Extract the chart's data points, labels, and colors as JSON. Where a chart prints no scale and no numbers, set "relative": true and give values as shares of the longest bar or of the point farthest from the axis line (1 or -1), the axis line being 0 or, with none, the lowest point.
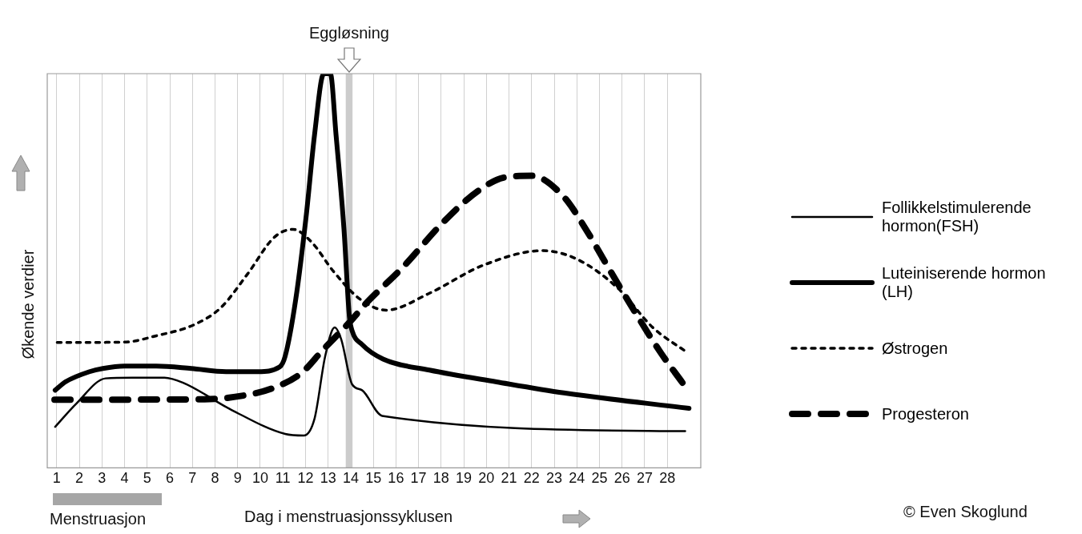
{
  "chart_data": {
    "type": "line",
    "relative": true,
    "xlabel": "Dag i menstruasjonssyklusen",
    "ylabel": "Økende verdier",
    "xlim": [
      0.58,
      29.48
    ],
    "xticks": [
      1,
      2,
      3,
      4,
      5,
      6,
      7,
      8,
      9,
      10,
      11,
      12,
      13,
      14,
      15,
      16,
      17,
      18,
      19,
      20,
      21,
      22,
      23,
      24,
      25,
      26,
      27,
      28
    ],
    "grid": "x",
    "legend": "right",
    "bands": [
      {
        "axis": "x",
        "from": 13.78,
        "to": 14.08,
        "label": "Eggløsning",
        "color": "#cccccc"
      }
    ],
    "annotations": [
      "Menstruasjon",
      "© Even Skoglund"
    ],
    "series": [
      {
        "name": "Follikkelstimulerende hormon(FSH)",
        "color": "#000000",
        "line_style": "solid",
        "x": [
          0.93,
          1.85,
          3.16,
          4.34,
          5.76,
          6.59,
          8.73,
          11.1,
          11.92,
          12.4,
          12.87,
          13.29,
          13.58,
          14.06,
          14.5,
          15.39,
          28.79
        ],
        "values": [
          0.104,
          0.162,
          0.227,
          0.229,
          0.229,
          0.216,
          0.147,
          0.086,
          0.082,
          0.125,
          0.283,
          0.356,
          0.326,
          0.212,
          0.197,
          0.132,
          0.093
        ]
      },
      {
        "name": "Luteiniserende hormon (LH)",
        "color": "#000000",
        "line_style": "solid",
        "x": [
          0.93,
          1.38,
          2.45,
          3.04,
          3.99,
          5.4,
          6.95,
          8.49,
          9.9,
          10.86,
          11.1,
          11.57,
          12.04,
          12.4,
          12.81,
          13.1,
          13.35,
          13.7,
          13.94,
          14.06,
          14.5,
          15.43,
          17.48,
          20.45,
          23.43,
          28.96
        ],
        "values": [
          0.197,
          0.218,
          0.244,
          0.252,
          0.258,
          0.258,
          0.252,
          0.244,
          0.244,
          0.256,
          0.283,
          0.428,
          0.644,
          0.845,
          1.0,
          1.0,
          0.845,
          0.607,
          0.384,
          0.348,
          0.313,
          0.276,
          0.248,
          0.218,
          0.19,
          0.151
        ]
      },
      {
        "name": "Østrogen",
        "color": "#000000",
        "line_style": "dotted",
        "x": [
          1.02,
          3.99,
          5.4,
          7.07,
          8.25,
          9.44,
          10.62,
          11.45,
          12.28,
          13.23,
          14.41,
          15.57,
          17.48,
          19.86,
          22.48,
          24.02,
          25.81,
          27.36,
          28.9
        ],
        "values": [
          0.318,
          0.319,
          0.335,
          0.363,
          0.406,
          0.492,
          0.585,
          0.605,
          0.572,
          0.499,
          0.428,
          0.4,
          0.443,
          0.514,
          0.551,
          0.529,
          0.456,
          0.356,
          0.292
        ]
      },
      {
        "name": "Progesteron",
        "color": "#000000",
        "line_style": "dashed",
        "x": [
          0.9,
          7.54,
          9.32,
          10.5,
          11.81,
          12.75,
          13.94,
          14.74,
          16.29,
          18.07,
          19.62,
          20.81,
          22.0,
          23.43,
          24.38,
          25.33,
          26.52,
          27.71,
          28.67
        ],
        "values": [
          0.173,
          0.174,
          0.184,
          0.201,
          0.24,
          0.298,
          0.369,
          0.421,
          0.508,
          0.622,
          0.702,
          0.737,
          0.741,
          0.687,
          0.607,
          0.514,
          0.4,
          0.292,
          0.216
        ]
      }
    ]
  }
}
